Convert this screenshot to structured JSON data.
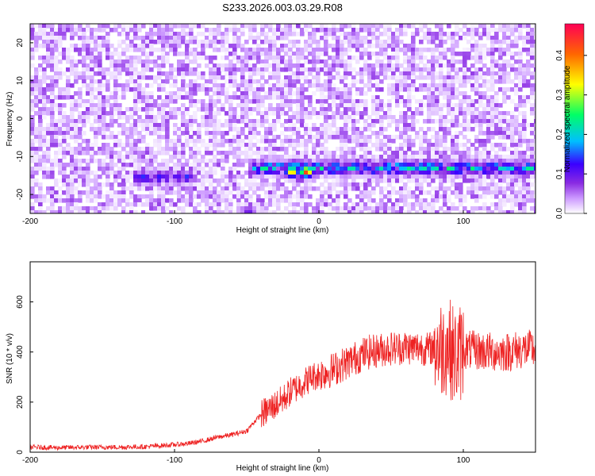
{
  "page": {
    "title": "S233.2026.003.03.29.R08"
  },
  "chart_data": [
    {
      "type": "heatmap",
      "title": "S233.2026.003.03.29.R08",
      "xlabel": "Height of straight line (km)",
      "ylabel": "Frequency (Hz)",
      "xlim": [
        -200,
        150
      ],
      "ylim": [
        -25,
        25
      ],
      "x_ticks": [
        -200,
        -100,
        0,
        100
      ],
      "y_ticks": [
        -20,
        -10,
        0,
        10,
        20
      ],
      "grid": false,
      "colorbar": {
        "label": "Normalized spectral amplitude",
        "range": [
          0.0,
          0.48
        ],
        "ticks": [
          0.0,
          0.1,
          0.2,
          0.3,
          0.4
        ],
        "tick_labels": [
          "0.0",
          "0.1",
          "0.2",
          "0.3",
          "0.4"
        ],
        "colors": [
          "#ffffff",
          "#cc99ff",
          "#8a2be2",
          "#3a00ff",
          "#00bfff",
          "#00ff66",
          "#ffff00",
          "#ff6600",
          "#ff0055"
        ]
      },
      "features": [
        {
          "kind": "line",
          "frequency": -12.5,
          "x_start": -50,
          "x_end": 150,
          "amplitude": 0.3
        },
        {
          "kind": "line",
          "frequency": -15.0,
          "x_start": -130,
          "x_end": -90,
          "amplitude": 0.2
        },
        {
          "kind": "peak",
          "x": -20,
          "frequency": -13.5,
          "amplitude": 0.4
        },
        {
          "kind": "peak",
          "x": -10,
          "frequency": -13.5,
          "amplitude": 0.45
        },
        {
          "kind": "peak",
          "x": 75,
          "frequency": -12,
          "amplitude": 0.25
        },
        {
          "kind": "peak",
          "x": -50,
          "frequency": -24,
          "amplitude": 0.15
        }
      ]
    },
    {
      "type": "line",
      "xlabel": "Height of straight line (km)",
      "ylabel": "SNR (10 * v/v)",
      "xlim": [
        -200,
        150
      ],
      "ylim": [
        0,
        760
      ],
      "x_ticks": [
        -200,
        -100,
        0,
        100
      ],
      "y_ticks": [
        0,
        200,
        400,
        600
      ],
      "grid": false,
      "series": [
        {
          "color": "#ee2222",
          "x": [
            -200,
            -180,
            -160,
            -140,
            -120,
            -100,
            -90,
            -80,
            -70,
            -60,
            -50,
            -45,
            -40,
            -35,
            -30,
            -25,
            -20,
            -15,
            -10,
            -5,
            0,
            5,
            10,
            15,
            20,
            25,
            30,
            35,
            40,
            45,
            50,
            55,
            60,
            65,
            70,
            75,
            80,
            85,
            90,
            92,
            95,
            100,
            110,
            120,
            130,
            140,
            150
          ],
          "y": [
            20,
            18,
            20,
            20,
            22,
            30,
            35,
            45,
            60,
            70,
            85,
            120,
            150,
            170,
            190,
            210,
            240,
            260,
            280,
            300,
            310,
            320,
            330,
            345,
            360,
            375,
            390,
            400,
            405,
            410,
            415,
            415,
            420,
            415,
            420,
            410,
            420,
            415,
            430,
            400,
            380,
            410,
            405,
            400,
            400,
            410,
            410
          ]
        }
      ],
      "noise": [
        {
          "x_start": -200,
          "x_end": -40,
          "amplitude": 10
        },
        {
          "x_start": -40,
          "x_end": 0,
          "amplitude": 60
        },
        {
          "x_start": 0,
          "x_end": 80,
          "amplitude": 70
        },
        {
          "x_start": 80,
          "x_end": 100,
          "amplitude": 200
        },
        {
          "x_start": 100,
          "x_end": 150,
          "amplitude": 80
        }
      ]
    }
  ]
}
